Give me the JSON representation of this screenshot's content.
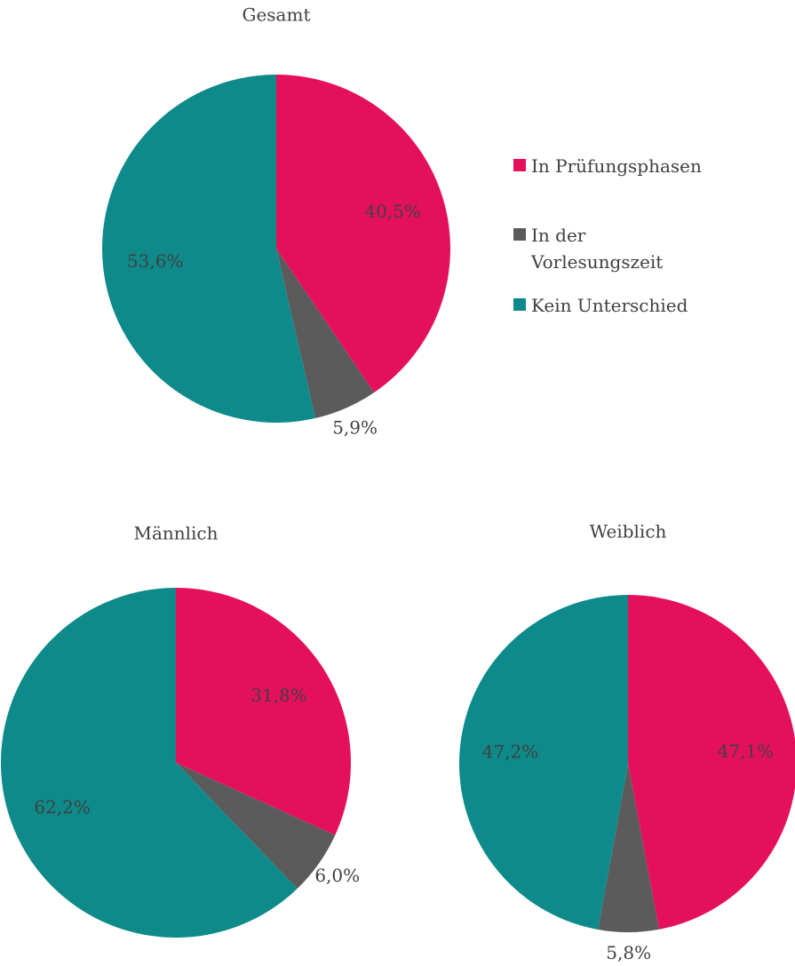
{
  "legend": {
    "categories": [
      "In Prüfungsphasen",
      "In der Vorlesungszeit",
      "Kein Unterschied"
    ],
    "colors": [
      "#e5105c",
      "#5b5b5b",
      "#0e8a8a"
    ]
  },
  "chart_data": [
    {
      "type": "pie",
      "title": "Gesamt",
      "values": [
        40.5,
        5.9,
        53.6
      ],
      "value_labels": [
        "40,5%",
        "5,9%",
        "53,6%"
      ]
    },
    {
      "type": "pie",
      "title": "Männlich",
      "values": [
        31.8,
        6.0,
        62.2
      ],
      "value_labels": [
        "31,8%",
        "6,0%",
        "62,2%"
      ]
    },
    {
      "type": "pie",
      "title": "Weiblich",
      "values": [
        47.1,
        5.8,
        47.2
      ],
      "value_labels": [
        "47,1%",
        "5,8%",
        "47,2%"
      ]
    }
  ]
}
